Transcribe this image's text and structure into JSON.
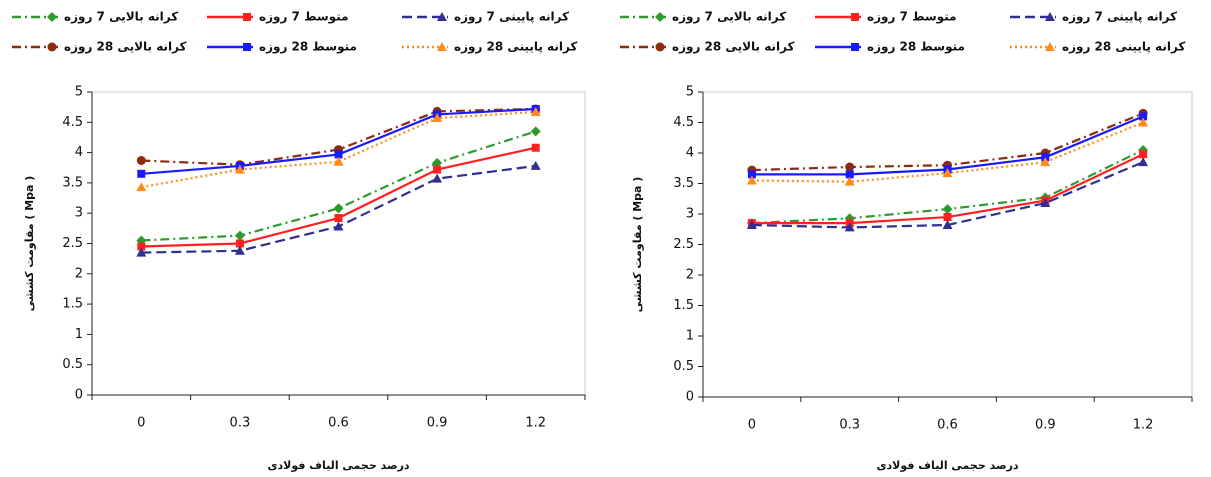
{
  "chart_data": [
    {
      "type": "line",
      "xlabel": "درصد حجمی الیاف فولادی",
      "ylabel": "مقاومت کششی ( Mpa )",
      "categories": [
        "0",
        "0.3",
        "0.6",
        "0.9",
        "1.2"
      ],
      "ylim": [
        0,
        5
      ],
      "yticks": [
        0,
        0.5,
        1,
        1.5,
        2,
        2.5,
        3,
        3.5,
        4,
        4.5,
        5
      ],
      "series": [
        {
          "name": "کرانه بالایی 7 روزه",
          "color": "#2e9a2e",
          "line_style": "dashdot",
          "marker": "diamond",
          "values": [
            2.55,
            2.63,
            3.08,
            3.83,
            4.35
          ]
        },
        {
          "name": "متوسط 7 روزه",
          "color": "#ff2020",
          "line_style": "solid",
          "marker": "square",
          "values": [
            2.45,
            2.5,
            2.92,
            3.72,
            4.08
          ]
        },
        {
          "name": "کرانه پایینی 7 روزه",
          "color": "#303090",
          "line_style": "dashed",
          "marker": "triangle",
          "values": [
            2.35,
            2.38,
            2.78,
            3.57,
            3.78
          ]
        },
        {
          "name": "کرانه بالایی 28 روزه",
          "color": "#8b2a10",
          "line_style": "dashdot",
          "marker": "circle",
          "values": [
            3.87,
            3.8,
            4.05,
            4.68,
            4.72
          ]
        },
        {
          "name": "متوسط 28 روزه",
          "color": "#1a1aff",
          "line_style": "solid",
          "marker": "square",
          "values": [
            3.65,
            3.78,
            3.97,
            4.63,
            4.72
          ]
        },
        {
          "name": "کرانه پایینی 28 روزه",
          "color": "#ff8c1a",
          "line_style": "dotted",
          "marker": "triangle",
          "values": [
            3.43,
            3.72,
            3.85,
            4.57,
            4.67
          ]
        }
      ]
    },
    {
      "type": "line",
      "xlabel": "درصد حجمی الیاف فولادی",
      "ylabel": "مقاومت کششی ( Mpa )",
      "categories": [
        "0",
        "0.3",
        "0.6",
        "0.9",
        "1.2"
      ],
      "ylim": [
        0,
        5
      ],
      "yticks": [
        0,
        0.5,
        1,
        1.5,
        2,
        2.5,
        3,
        3.5,
        4,
        4.5,
        5
      ],
      "series": [
        {
          "name": "کرانه بالایی 7 روزه",
          "color": "#2e9a2e",
          "line_style": "dashdot",
          "marker": "diamond",
          "values": [
            2.85,
            2.93,
            3.08,
            3.27,
            4.05
          ]
        },
        {
          "name": "متوسط 7 روزه",
          "color": "#ff2020",
          "line_style": "solid",
          "marker": "square",
          "values": [
            2.85,
            2.85,
            2.95,
            3.22,
            3.98
          ]
        },
        {
          "name": "کرانه پایینی 7 روزه",
          "color": "#303090",
          "line_style": "dashed",
          "marker": "triangle",
          "values": [
            2.82,
            2.78,
            2.82,
            3.18,
            3.85
          ]
        },
        {
          "name": "کرانه بالایی 28 روزه",
          "color": "#8b2a10",
          "line_style": "dashdot",
          "marker": "circle",
          "values": [
            3.72,
            3.77,
            3.8,
            4.0,
            4.65
          ]
        },
        {
          "name": "متوسط 28 روزه",
          "color": "#1a1aff",
          "line_style": "solid",
          "marker": "square",
          "values": [
            3.65,
            3.65,
            3.73,
            3.93,
            4.6
          ]
        },
        {
          "name": "کرانه پایینی 28 روزه",
          "color": "#ff8c1a",
          "line_style": "dotted",
          "marker": "triangle",
          "values": [
            3.55,
            3.53,
            3.67,
            3.85,
            4.5
          ]
        }
      ]
    }
  ]
}
